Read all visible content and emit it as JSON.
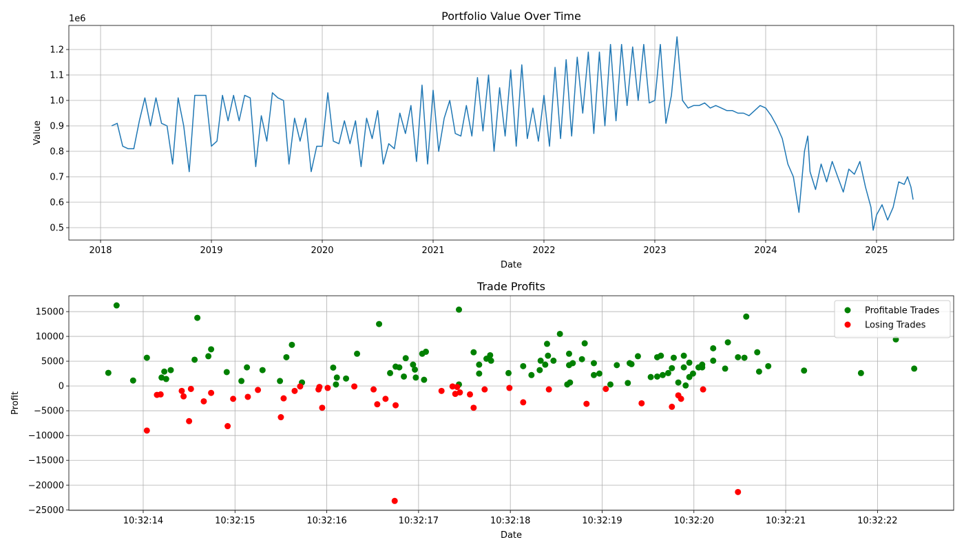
{
  "chart_data": [
    {
      "type": "line",
      "title": "Portfolio Value Over Time",
      "x_label": "Date",
      "y_label": "Value",
      "y_offset_label": "1e6",
      "color": "#1f77b4",
      "grid": true,
      "xlim": [
        2017.714,
        2025.696
      ],
      "xticks": [
        2018,
        2019,
        2020,
        2021,
        2022,
        2023,
        2024,
        2025
      ],
      "ylim": [
        0.4514,
        1.2946
      ],
      "yticks": [
        0.5,
        0.6,
        0.7,
        0.8,
        0.9,
        {
          "value": 1,
          "label": "1.0"
        },
        1.1,
        1.2
      ],
      "x": [
        2018.1,
        2018.15,
        2018.2,
        2018.25,
        2018.3,
        2018.35,
        2018.4,
        2018.45,
        2018.5,
        2018.55,
        2018.6,
        2018.65,
        2018.7,
        2018.75,
        2018.8,
        2018.85,
        2018.9,
        2018.95,
        2019.0,
        2019.05,
        2019.1,
        2019.15,
        2019.2,
        2019.25,
        2019.3,
        2019.35,
        2019.4,
        2019.45,
        2019.5,
        2019.55,
        2019.6,
        2019.65,
        2019.7,
        2019.75,
        2019.8,
        2019.85,
        2019.9,
        2019.95,
        2020.0,
        2020.05,
        2020.1,
        2020.15,
        2020.2,
        2020.25,
        2020.3,
        2020.35,
        2020.4,
        2020.45,
        2020.5,
        2020.55,
        2020.6,
        2020.65,
        2020.7,
        2020.75,
        2020.8,
        2020.85,
        2020.9,
        2020.95,
        2021.0,
        2021.05,
        2021.1,
        2021.15,
        2021.2,
        2021.25,
        2021.3,
        2021.35,
        2021.4,
        2021.45,
        2021.5,
        2021.55,
        2021.6,
        2021.65,
        2021.7,
        2021.75,
        2021.8,
        2021.85,
        2021.9,
        2021.95,
        2022.0,
        2022.05,
        2022.1,
        2022.15,
        2022.2,
        2022.25,
        2022.3,
        2022.35,
        2022.4,
        2022.45,
        2022.5,
        2022.55,
        2022.6,
        2022.65,
        2022.7,
        2022.75,
        2022.8,
        2022.85,
        2022.9,
        2022.95,
        2023.0,
        2023.05,
        2023.1,
        2023.15,
        2023.2,
        2023.25,
        2023.3,
        2023.35,
        2023.4,
        2023.45,
        2023.5,
        2023.55,
        2023.6,
        2023.65,
        2023.7,
        2023.75,
        2023.8,
        2023.85,
        2023.9,
        2023.95,
        2024.0,
        2024.05,
        2024.1,
        2024.15,
        2024.2,
        2024.25,
        2024.3,
        2024.35,
        2024.38,
        2024.4,
        2024.45,
        2024.5,
        2024.55,
        2024.6,
        2024.65,
        2024.7,
        2024.75,
        2024.8,
        2024.85,
        2024.9,
        2024.95,
        2024.97,
        2025.0,
        2025.05,
        2025.1,
        2025.15,
        2025.2,
        2025.25,
        2025.28,
        2025.31,
        2025.33
      ],
      "values": [
        0.9,
        0.91,
        0.82,
        0.81,
        0.81,
        0.92,
        1.01,
        0.9,
        1.01,
        0.91,
        0.9,
        0.75,
        1.01,
        0.9,
        0.72,
        1.02,
        1.02,
        1.02,
        0.82,
        0.84,
        1.02,
        0.92,
        1.02,
        0.92,
        1.02,
        1.01,
        0.74,
        0.94,
        0.84,
        1.03,
        1.01,
        1.0,
        0.75,
        0.93,
        0.84,
        0.93,
        0.72,
        0.82,
        0.82,
        1.03,
        0.84,
        0.83,
        0.92,
        0.83,
        0.92,
        0.74,
        0.93,
        0.85,
        0.96,
        0.75,
        0.83,
        0.81,
        0.95,
        0.87,
        0.98,
        0.76,
        1.06,
        0.75,
        1.04,
        0.8,
        0.93,
        1.0,
        0.87,
        0.86,
        0.98,
        0.86,
        1.09,
        0.88,
        1.1,
        0.8,
        1.05,
        0.86,
        1.12,
        0.82,
        1.14,
        0.85,
        0.97,
        0.84,
        1.02,
        0.82,
        1.13,
        0.85,
        1.16,
        0.86,
        1.17,
        0.95,
        1.19,
        0.87,
        1.19,
        0.9,
        1.22,
        0.92,
        1.22,
        0.98,
        1.21,
        1.0,
        1.22,
        0.99,
        1.0,
        1.22,
        0.91,
        1.02,
        1.25,
        1.0,
        0.97,
        0.98,
        0.98,
        0.99,
        0.97,
        0.98,
        0.97,
        0.96,
        0.96,
        0.95,
        0.95,
        0.94,
        0.96,
        0.98,
        0.97,
        0.94,
        0.9,
        0.85,
        0.75,
        0.7,
        0.56,
        0.8,
        0.86,
        0.72,
        0.65,
        0.75,
        0.68,
        0.76,
        0.7,
        0.64,
        0.73,
        0.71,
        0.76,
        0.66,
        0.58,
        0.49,
        0.55,
        0.59,
        0.53,
        0.58,
        0.68,
        0.67,
        0.7,
        0.66,
        0.61
      ]
    },
    {
      "type": "scatter",
      "title": "Trade Profits",
      "x_label": "Date",
      "y_label": "Profit",
      "grid": true,
      "legend": "upper right",
      "xlim": [
        13.19,
        22.83
      ],
      "xticks": [
        {
          "value": 14,
          "label": "10:32:14"
        },
        {
          "value": 15,
          "label": "10:32:15"
        },
        {
          "value": 16,
          "label": "10:32:16"
        },
        {
          "value": 17,
          "label": "10:32:17"
        },
        {
          "value": 18,
          "label": "10:32:18"
        },
        {
          "value": 19,
          "label": "10:32:19"
        },
        {
          "value": 20,
          "label": "10:32:20"
        },
        {
          "value": 21,
          "label": "10:32:21"
        },
        {
          "value": 22,
          "label": "10:32:22"
        }
      ],
      "ylim": [
        -25100,
        18200
      ],
      "yticks": [
        {
          "value": -25000,
          "label": "−25000"
        },
        {
          "value": -20000,
          "label": "−20000"
        },
        {
          "value": -15000,
          "label": "−15000"
        },
        {
          "value": -10000,
          "label": "−10000"
        },
        {
          "value": -5000,
          "label": "−5000"
        },
        0,
        5000,
        10000,
        15000
      ],
      "series": [
        {
          "name": "Profitable Trades",
          "color": "green",
          "x": [
            13.62,
            13.71,
            13.89,
            14.04,
            14.2,
            14.23,
            14.25,
            14.3,
            14.56,
            14.59,
            14.71,
            14.74,
            14.91,
            15.07,
            15.13,
            15.3,
            15.49,
            15.56,
            15.62,
            15.73,
            16.07,
            16.11,
            16.1,
            16.21,
            16.33,
            16.57,
            16.69,
            16.75,
            16.79,
            16.84,
            16.86,
            16.94,
            16.96,
            16.97,
            17.04,
            17.08,
            17.06,
            17.44,
            17.44,
            17.6,
            17.66,
            17.66,
            17.74,
            17.78,
            17.79,
            17.98,
            18.14,
            18.23,
            18.32,
            18.33,
            18.38,
            18.4,
            18.41,
            18.47,
            18.54,
            18.64,
            18.64,
            18.65,
            18.62,
            18.68,
            18.78,
            18.81,
            18.91,
            18.91,
            18.97,
            19.09,
            19.16,
            19.28,
            19.3,
            19.32,
            19.39,
            19.53,
            19.6,
            19.6,
            19.64,
            19.66,
            19.72,
            19.76,
            19.78,
            19.83,
            19.89,
            19.89,
            19.91,
            19.95,
            19.95,
            19.99,
            20.05,
            20.09,
            20.09,
            20.21,
            20.21,
            20.34,
            20.37,
            20.48,
            20.55,
            20.57,
            20.69,
            20.71,
            20.81,
            21.2,
            21.82,
            22.2,
            22.4
          ],
          "values": [
            2640,
            16250,
            1100,
            5700,
            1700,
            2900,
            1400,
            3200,
            5300,
            13750,
            6000,
            7400,
            2800,
            1000,
            3750,
            3200,
            1000,
            5800,
            8300,
            700,
            3700,
            1700,
            300,
            1500,
            6500,
            12500,
            2600,
            3900,
            3750,
            1900,
            5600,
            4300,
            3300,
            1700,
            6500,
            6900,
            1250,
            15400,
            300,
            6800,
            4300,
            2500,
            5500,
            6200,
            5100,
            2600,
            4000,
            2200,
            3200,
            5100,
            4300,
            8500,
            6100,
            5100,
            10500,
            4200,
            6500,
            700,
            300,
            4600,
            5400,
            8600,
            4600,
            2200,
            2500,
            300,
            4200,
            600,
            4600,
            4400,
            6000,
            1800,
            1900,
            5800,
            6100,
            2200,
            2600,
            3600,
            5700,
            700,
            3750,
            6100,
            100,
            1800,
            4700,
            2500,
            3750,
            4300,
            3750,
            5100,
            7600,
            3500,
            8800,
            5800,
            5700,
            14000,
            6800,
            2900,
            4000,
            3100,
            2600,
            9400,
            3500
          ]
        },
        {
          "name": "Losing Trades",
          "color": "red",
          "x": [
            14.04,
            14.15,
            14.19,
            14.42,
            14.44,
            14.5,
            14.52,
            14.66,
            14.74,
            14.92,
            14.98,
            15.14,
            15.25,
            15.5,
            15.53,
            15.65,
            15.71,
            15.91,
            15.92,
            15.95,
            16.01,
            16.3,
            16.51,
            16.55,
            16.64,
            16.74,
            16.75,
            17.25,
            17.37,
            17.4,
            17.42,
            17.45,
            17.56,
            17.6,
            17.72,
            17.99,
            18.14,
            18.42,
            18.83,
            19.04,
            19.43,
            19.76,
            19.83,
            19.86,
            20.1,
            20.48
          ],
          "values": [
            -9000,
            -1800,
            -1700,
            -1000,
            -2100,
            -7100,
            -600,
            -3100,
            -1400,
            -8100,
            -2600,
            -2200,
            -800,
            -6300,
            -2500,
            -1000,
            -100,
            -700,
            -200,
            -4400,
            -400,
            -100,
            -700,
            -3700,
            -2600,
            -23200,
            -3900,
            -1000,
            -100,
            -1600,
            -200,
            -1300,
            -1700,
            -4400,
            -700,
            -400,
            -3300,
            -700,
            -3600,
            -600,
            -3500,
            -4200,
            -1900,
            -2600,
            -700,
            -21400
          ]
        }
      ]
    }
  ]
}
